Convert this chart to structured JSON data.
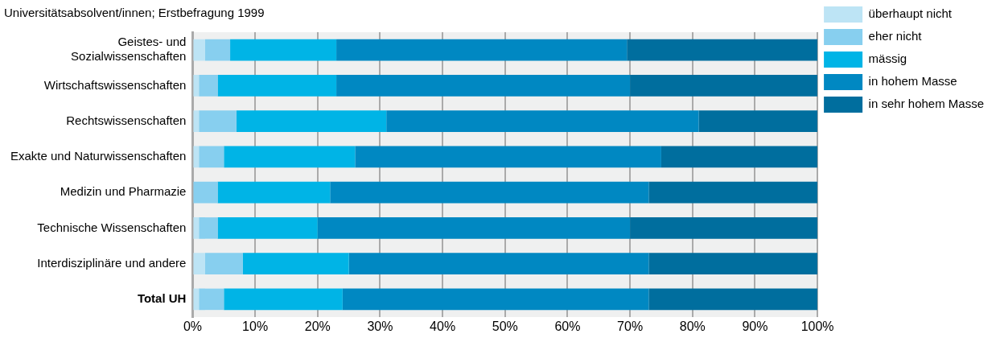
{
  "chart_data": {
    "type": "bar",
    "orientation": "horizontal",
    "stacked": true,
    "title": "Universitätsabsolvent/innen; Erstbefragung 1999",
    "categories": [
      "Geistes- und Sozialwissenschaften",
      "Wirtschaftswissenschaften",
      "Rechtswissenschaften",
      "Exakte und Naturwissenschaften",
      "Medizin und Pharmazie",
      "Technische Wissenschaften",
      "Interdisziplinäre und andere",
      "Total UH"
    ],
    "series": [
      {
        "name": "überhaupt nicht",
        "color": "#bde4f5",
        "values": [
          2,
          1,
          1,
          1,
          0,
          1,
          2,
          1
        ]
      },
      {
        "name": "eher nicht",
        "color": "#87cfef",
        "values": [
          4,
          3,
          6,
          4,
          4,
          3,
          6,
          4
        ]
      },
      {
        "name": "mässig",
        "color": "#00b4e6",
        "values": [
          17,
          19,
          24,
          21,
          18,
          16,
          17,
          19
        ]
      },
      {
        "name": "in hohem Masse",
        "color": "#0088c2",
        "values": [
          46.5,
          47,
          50,
          49,
          51,
          50,
          48,
          49
        ]
      },
      {
        "name": "in sehr hohem Masse",
        "color": "#006e9e",
        "values": [
          30.5,
          30,
          19,
          25,
          27,
          30,
          27,
          27
        ]
      }
    ],
    "xlim": [
      0,
      100
    ],
    "xticks": [
      {
        "value": 0,
        "label": "0%"
      },
      {
        "value": 10,
        "label": "10%"
      },
      {
        "value": 20,
        "label": "20%"
      },
      {
        "value": 30,
        "label": "30%"
      },
      {
        "value": 40,
        "label": "40%"
      },
      {
        "value": 50,
        "label": "50%"
      },
      {
        "value": 60,
        "label": "60%"
      },
      {
        "value": 70,
        "label": "70%"
      },
      {
        "value": 80,
        "label": "80%"
      },
      {
        "value": 90,
        "label": "90%"
      },
      {
        "value": 100,
        "label": "100%"
      }
    ],
    "grid": "x",
    "legend": "top right"
  }
}
